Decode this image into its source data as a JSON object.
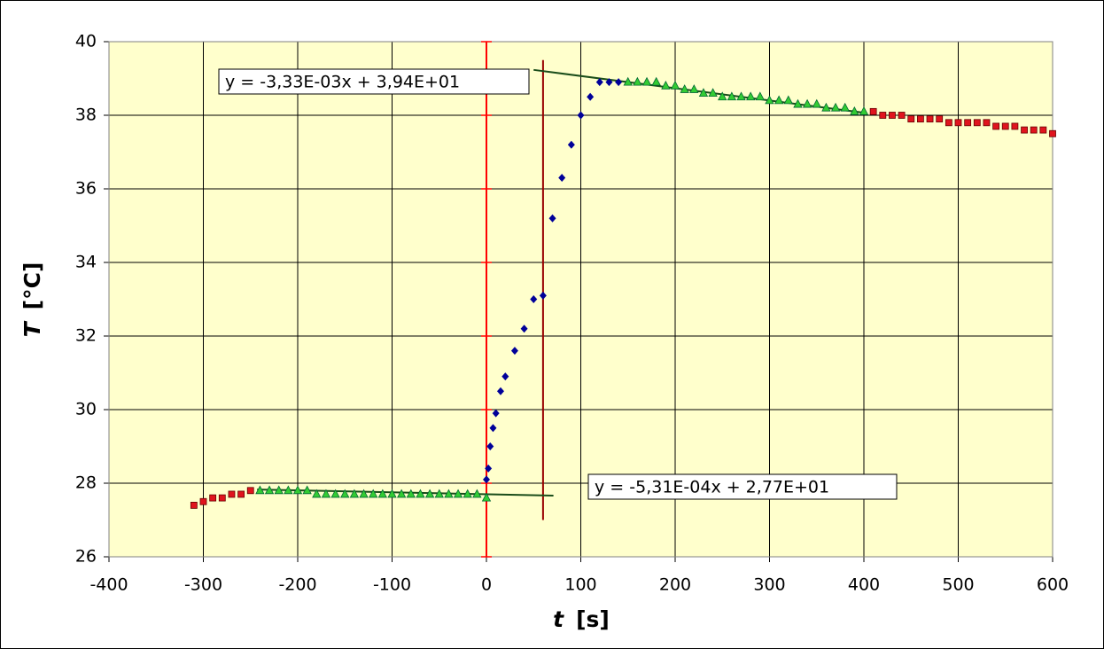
{
  "chart_data": {
    "type": "scatter",
    "ylabel": {
      "symbol": "T",
      "unit": "[°C]"
    },
    "xlabel": {
      "symbol": "t",
      "unit": "[s]"
    },
    "xlim": [
      -400,
      600
    ],
    "xticks": [
      -400,
      -300,
      -200,
      -100,
      0,
      100,
      200,
      300,
      400,
      500,
      600
    ],
    "ylim": [
      26,
      40
    ],
    "yticks": [
      26,
      28,
      30,
      32,
      34,
      36,
      38,
      40
    ],
    "grid": true,
    "plot_background": "#ffffcc",
    "series": [
      {
        "marker": "square",
        "color": "#e0141e",
        "x": [
          -310,
          -300,
          -290,
          -280,
          -270,
          -260,
          -250,
          410,
          420,
          430,
          440,
          450,
          460,
          470,
          480,
          490,
          500,
          510,
          520,
          530,
          540,
          550,
          560,
          570,
          580,
          590,
          600
        ],
        "values": [
          27.4,
          27.5,
          27.6,
          27.6,
          27.7,
          27.7,
          27.8,
          38.1,
          38.0,
          38.0,
          38.0,
          37.9,
          37.9,
          37.9,
          37.9,
          37.8,
          37.8,
          37.8,
          37.8,
          37.8,
          37.7,
          37.7,
          37.7,
          37.6,
          37.6,
          37.6,
          37.5
        ]
      },
      {
        "marker": "triangle",
        "color": "#33cc33",
        "x": [
          -240,
          -230,
          -220,
          -210,
          -200,
          -190,
          -180,
          -170,
          -160,
          -150,
          -140,
          -130,
          -120,
          -110,
          -100,
          -90,
          -80,
          -70,
          -60,
          -50,
          -40,
          -30,
          -20,
          -10,
          0,
          150,
          160,
          170,
          180,
          190,
          200,
          210,
          220,
          230,
          240,
          250,
          260,
          270,
          280,
          290,
          300,
          310,
          320,
          330,
          340,
          350,
          360,
          370,
          380,
          390,
          400
        ],
        "values": [
          27.8,
          27.8,
          27.8,
          27.8,
          27.8,
          27.8,
          27.7,
          27.7,
          27.7,
          27.7,
          27.7,
          27.7,
          27.7,
          27.7,
          27.7,
          27.7,
          27.7,
          27.7,
          27.7,
          27.7,
          27.7,
          27.7,
          27.7,
          27.7,
          27.6,
          38.9,
          38.9,
          38.9,
          38.9,
          38.8,
          38.8,
          38.7,
          38.7,
          38.6,
          38.6,
          38.5,
          38.5,
          38.5,
          38.5,
          38.5,
          38.4,
          38.4,
          38.4,
          38.3,
          38.3,
          38.3,
          38.2,
          38.2,
          38.2,
          38.1,
          38.1
        ]
      },
      {
        "marker": "diamond",
        "color": "#000099",
        "x": [
          0,
          2,
          4,
          7,
          10,
          15,
          20,
          30,
          40,
          50,
          60,
          70,
          80,
          90,
          100,
          110,
          120,
          130,
          140
        ],
        "values": [
          28.1,
          28.4,
          29.0,
          29.5,
          29.9,
          30.5,
          30.9,
          31.6,
          32.2,
          33.0,
          33.1,
          35.2,
          36.3,
          37.2,
          38.0,
          38.5,
          38.9,
          38.9,
          38.9
        ]
      }
    ],
    "trendlines": [
      {
        "equation": "y = -5,31E-04x + 2,77E+01",
        "slope": -0.000531,
        "intercept": 27.7,
        "x_range": [
          -243,
          71
        ],
        "color": "#1a4d1a"
      },
      {
        "equation": "y = -3,33E-03x + 3,94E+01",
        "slope": -0.00333,
        "intercept": 39.4,
        "x_range": [
          50,
          400
        ],
        "color": "#1a4d1a"
      }
    ],
    "vlines": [
      {
        "x": 0,
        "y_range": [
          26,
          40
        ],
        "color": "#ff0000"
      },
      {
        "x": 60,
        "y_range": [
          27.0,
          39.5
        ],
        "color": "#990000"
      }
    ]
  }
}
